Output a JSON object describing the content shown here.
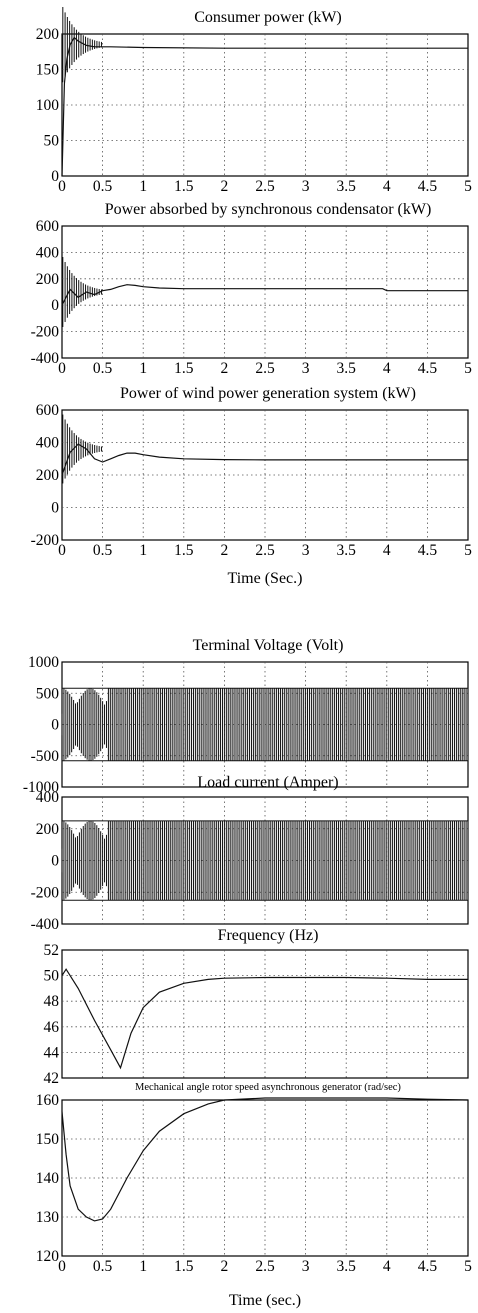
{
  "chart_data": [
    {
      "type": "line",
      "title": "Consumer power (kW)",
      "xlabel": "",
      "ylabel": "",
      "xlim": [
        0,
        5
      ],
      "ylim": [
        0,
        200
      ],
      "xticks": [
        "0",
        "0.5",
        "1",
        "1.5",
        "2",
        "2.5",
        "3",
        "3.5",
        "4",
        "4.5",
        "5"
      ],
      "yticks": [
        "0",
        "50",
        "100",
        "150",
        "200"
      ],
      "grid": true,
      "series": [
        {
          "x": [
            0,
            0.03,
            0.06,
            0.1,
            0.15,
            0.2,
            0.3,
            0.4,
            0.6,
            1,
            2,
            3,
            4,
            5
          ],
          "values": [
            0,
            130,
            165,
            185,
            195,
            190,
            184,
            182,
            182,
            181,
            180,
            180,
            180,
            180
          ]
        }
      ]
    },
    {
      "type": "line",
      "title": "Power absorbed by synchronous condensator (kW)",
      "xlabel": "",
      "ylabel": "",
      "xlim": [
        0,
        5
      ],
      "ylim": [
        -400,
        600
      ],
      "xticks": [
        "0",
        "0.5",
        "1",
        "1.5",
        "2",
        "2.5",
        "3",
        "3.5",
        "4",
        "4.5",
        "5"
      ],
      "yticks": [
        "-400",
        "-200",
        "0",
        "200",
        "400",
        "600"
      ],
      "grid": true,
      "series": [
        {
          "x": [
            0,
            0.1,
            0.2,
            0.3,
            0.4,
            0.5,
            0.6,
            0.7,
            0.8,
            0.9,
            1.0,
            1.2,
            1.5,
            2,
            2.5,
            3,
            3.5,
            3.95,
            4.0,
            4.5,
            5
          ],
          "values": [
            0,
            120,
            60,
            100,
            80,
            110,
            120,
            140,
            155,
            150,
            140,
            130,
            125,
            125,
            125,
            125,
            125,
            125,
            110,
            110,
            110
          ]
        }
      ]
    },
    {
      "type": "line",
      "title": "Power of wind power generation system (kW)",
      "xlabel": "Time (Sec.)",
      "ylabel": "",
      "xlim": [
        0,
        5
      ],
      "ylim": [
        -200,
        600
      ],
      "xticks": [
        "0",
        "0.5",
        "1",
        "1.5",
        "2",
        "2.5",
        "3",
        "3.5",
        "4",
        "4.5",
        "5"
      ],
      "yticks": [
        "-200",
        "0",
        "200",
        "400",
        "600"
      ],
      "grid": true,
      "series": [
        {
          "x": [
            0,
            0.1,
            0.2,
            0.3,
            0.4,
            0.5,
            0.6,
            0.7,
            0.8,
            0.9,
            1.0,
            1.2,
            1.5,
            2,
            2.5,
            3,
            3.5,
            4,
            4.5,
            5
          ],
          "values": [
            200,
            340,
            390,
            360,
            300,
            280,
            300,
            320,
            335,
            335,
            325,
            310,
            300,
            295,
            293,
            293,
            293,
            293,
            293,
            293
          ]
        }
      ]
    },
    {
      "type": "line",
      "title": "Terminal Voltage (Volt)",
      "xlabel": "",
      "ylabel": "",
      "xlim": [
        0,
        5
      ],
      "ylim": [
        -1000,
        1000
      ],
      "yticks": [
        "-1000",
        "-500",
        "0",
        "500",
        "1000"
      ],
      "grid": true,
      "series": [
        {
          "amplitude": 580
        }
      ]
    },
    {
      "type": "line",
      "title": "Load current (Amper)",
      "xlabel": "",
      "ylabel": "",
      "xlim": [
        0,
        5
      ],
      "ylim": [
        -400,
        400
      ],
      "yticks": [
        "-400",
        "-200",
        "0",
        "200",
        "400"
      ],
      "grid": true,
      "series": [
        {
          "amplitude": 250
        }
      ]
    },
    {
      "type": "line",
      "title": "Frequency (Hz)",
      "xlabel": "",
      "ylabel": "",
      "xlim": [
        0,
        5
      ],
      "ylim": [
        42,
        52
      ],
      "yticks": [
        "42",
        "44",
        "46",
        "48",
        "50",
        "52"
      ],
      "grid": true,
      "series": [
        {
          "x": [
            0,
            0.05,
            0.2,
            0.4,
            0.6,
            0.72,
            0.85,
            1.0,
            1.2,
            1.5,
            1.8,
            2.0,
            2.5,
            3,
            3.5,
            4.0,
            4.5,
            5
          ],
          "values": [
            50,
            50.5,
            49,
            46.5,
            44.2,
            42.8,
            45.5,
            47.5,
            48.7,
            49.4,
            49.7,
            49.8,
            49.85,
            49.85,
            49.85,
            49.8,
            49.7,
            49.7
          ]
        }
      ]
    },
    {
      "type": "line",
      "title": "Mechanical angle rotor speed asynchronous generator (rad/sec)",
      "xlabel": "Time (sec.)",
      "ylabel": "",
      "xlim": [
        0,
        5
      ],
      "ylim": [
        120,
        160
      ],
      "xticks": [
        "0",
        "0.5",
        "1",
        "1.5",
        "2",
        "2.5",
        "3",
        "3.5",
        "4",
        "4.5",
        "5"
      ],
      "yticks": [
        "120",
        "130",
        "140",
        "150",
        "160"
      ],
      "grid": true,
      "series": [
        {
          "x": [
            0,
            0.05,
            0.1,
            0.2,
            0.3,
            0.4,
            0.5,
            0.6,
            0.8,
            1.0,
            1.2,
            1.5,
            1.8,
            2.0,
            2.5,
            3,
            3.5,
            4,
            4.5,
            5
          ],
          "values": [
            157,
            146,
            138,
            132,
            130,
            129,
            129.5,
            132,
            140,
            147,
            152,
            156.5,
            159,
            160,
            160.5,
            160.5,
            160.5,
            160.5,
            160.2,
            160
          ]
        }
      ]
    }
  ]
}
